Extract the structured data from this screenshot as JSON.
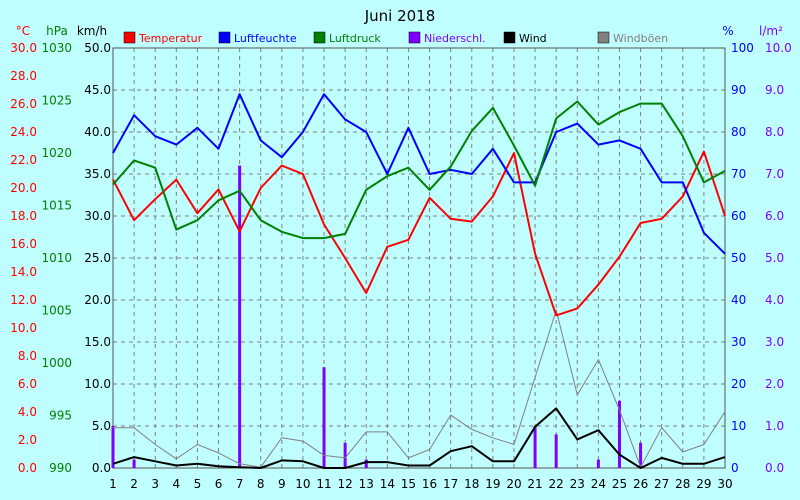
{
  "chart_data": {
    "type": "line",
    "title": "Juni 2018",
    "axes": {
      "temperature": {
        "unit": "°C",
        "range": [
          0,
          30
        ],
        "ticks": [
          "0.0",
          "2.0",
          "4.0",
          "6.0",
          "8.0",
          "10.0",
          "12.0",
          "14.0",
          "16.0",
          "18.0",
          "20.0",
          "22.0",
          "24.0",
          "26.0",
          "28.0",
          "30.0"
        ],
        "color": "#ff0000"
      },
      "pressure": {
        "unit": "hPa",
        "range": [
          990,
          1030
        ],
        "ticks": [
          "990",
          "995",
          "1000",
          "1005",
          "1010",
          "1015",
          "1020",
          "1025",
          "1030"
        ],
        "color": "#008000"
      },
      "wind": {
        "unit": "km/h",
        "range": [
          0,
          50
        ],
        "ticks": [
          "0.0",
          "5.0",
          "10.0",
          "15.0",
          "20.0",
          "25.0",
          "30.0",
          "35.0",
          "40.0",
          "45.0",
          "50.0"
        ],
        "color": "#000000"
      },
      "humidity": {
        "unit": "%",
        "range": [
          0,
          100
        ],
        "ticks": [
          "0",
          "10",
          "20",
          "30",
          "40",
          "50",
          "60",
          "70",
          "80",
          "90",
          "100"
        ],
        "color": "#0000ff"
      },
      "precipitation": {
        "unit": "l/m²",
        "range": [
          0,
          10
        ],
        "ticks": [
          "0.0",
          "1.0",
          "2.0",
          "3.0",
          "4.0",
          "5.0",
          "6.0",
          "7.0",
          "8.0",
          "9.0",
          "10.0"
        ],
        "color": "#8000ff"
      }
    },
    "x": [
      "1",
      "2",
      "3",
      "4",
      "5",
      "6",
      "7",
      "8",
      "9",
      "10",
      "11",
      "12",
      "13",
      "14",
      "15",
      "16",
      "17",
      "18",
      "19",
      "20",
      "21",
      "22",
      "23",
      "24",
      "25",
      "26",
      "27",
      "28",
      "29",
      "30"
    ],
    "grid": true,
    "legend_position": "top",
    "series": [
      {
        "name": "Temperatur",
        "axis": "temperature",
        "color": "#ff0000",
        "style": "line",
        "values": [
          20.6,
          17.7,
          19.2,
          20.6,
          18.2,
          19.9,
          16.9,
          20.0,
          21.6,
          21.0,
          17.4,
          15.0,
          12.5,
          15.8,
          16.3,
          19.3,
          17.8,
          17.6,
          19.4,
          22.5,
          15.3,
          10.9,
          11.4,
          13.1,
          15.1,
          17.5,
          17.8,
          19.4,
          22.6,
          18.0
        ]
      },
      {
        "name": "Luftfeuchte",
        "axis": "humidity",
        "color": "#0000ff",
        "style": "line",
        "values": [
          75,
          84,
          79,
          77,
          81,
          76,
          89,
          78,
          74,
          80,
          89,
          83,
          80,
          70,
          81,
          70,
          71,
          70,
          76,
          68,
          68,
          80,
          82,
          77,
          78,
          76,
          68,
          68,
          56,
          51
        ]
      },
      {
        "name": "Luftdruck",
        "axis": "pressure",
        "color": "#008000",
        "style": "line",
        "values": [
          1017,
          1019.3,
          1018.6,
          1012.7,
          1013.6,
          1015.5,
          1016.4,
          1013.6,
          1012.5,
          1011.9,
          1011.9,
          1012.3,
          1016.5,
          1017.8,
          1018.6,
          1016.5,
          1018.7,
          1022.1,
          1024.3,
          1020.7,
          1016.9,
          1023.3,
          1024.9,
          1022.7,
          1023.9,
          1024.7,
          1024.7,
          1021.6,
          1017.2,
          1018.3
        ]
      },
      {
        "name": "Niederschl.",
        "axis": "precipitation",
        "color": "#8000ff",
        "style": "bar",
        "values": [
          1.0,
          0.2,
          0,
          0,
          0,
          0,
          7.2,
          0,
          0,
          0,
          2.4,
          0.6,
          0.2,
          0,
          0,
          0,
          0,
          0,
          0,
          0,
          1.0,
          0.8,
          0,
          0.2,
          1.6,
          0.6,
          0,
          0,
          0,
          0
        ]
      },
      {
        "name": "Wind",
        "axis": "wind",
        "color": "#000000",
        "style": "line",
        "values": [
          0.5,
          1.3,
          0.8,
          0.3,
          0.5,
          0.2,
          0.1,
          0.0,
          0.9,
          0.8,
          0.0,
          0.0,
          0.7,
          0.7,
          0.3,
          0.3,
          2.0,
          2.6,
          0.8,
          0.8,
          4.9,
          7.1,
          3.4,
          4.5,
          1.6,
          0.0,
          1.2,
          0.5,
          0.5,
          1.3
        ]
      },
      {
        "name": "Windböen",
        "axis": "wind",
        "color": "#808080",
        "style": "line",
        "values": [
          4.8,
          4.8,
          2.8,
          1.1,
          2.8,
          1.8,
          0.5,
          0.1,
          3.6,
          3.2,
          1.5,
          1.2,
          4.3,
          4.3,
          1.2,
          2.2,
          6.3,
          4.6,
          3.6,
          2.8,
          10.8,
          18.8,
          8.7,
          12.9,
          6.9,
          0.1,
          4.8,
          1.9,
          2.8,
          6.7
        ]
      }
    ]
  },
  "colors": {
    "background": "#c0ffff",
    "plot_background": "#c0ffff",
    "grid": "#7f7f7f"
  }
}
